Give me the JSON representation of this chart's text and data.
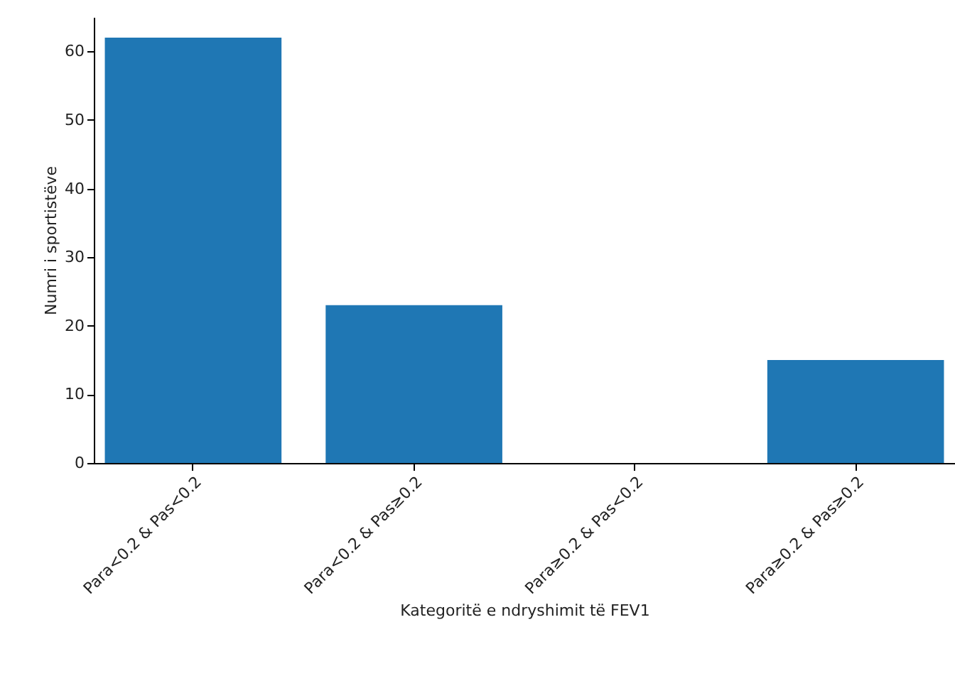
{
  "chart_data": {
    "type": "bar",
    "xlabel": "Kategoritë e ndryshimit të FEV1",
    "ylabel": "Numri i sportistëve",
    "categories": [
      "Para<0.2 & Pas<0.2",
      "Para<0.2 & Pas≥0.2",
      "Para≥0.2 & Pas<0.2",
      "Para≥0.2 & Pas≥0.2"
    ],
    "values": [
      62,
      23,
      0,
      15
    ],
    "color": "#1f77b4",
    "ylim": [
      0,
      65
    ],
    "yticks": [
      0,
      10,
      20,
      30,
      40,
      50,
      60
    ],
    "grid": false
  }
}
